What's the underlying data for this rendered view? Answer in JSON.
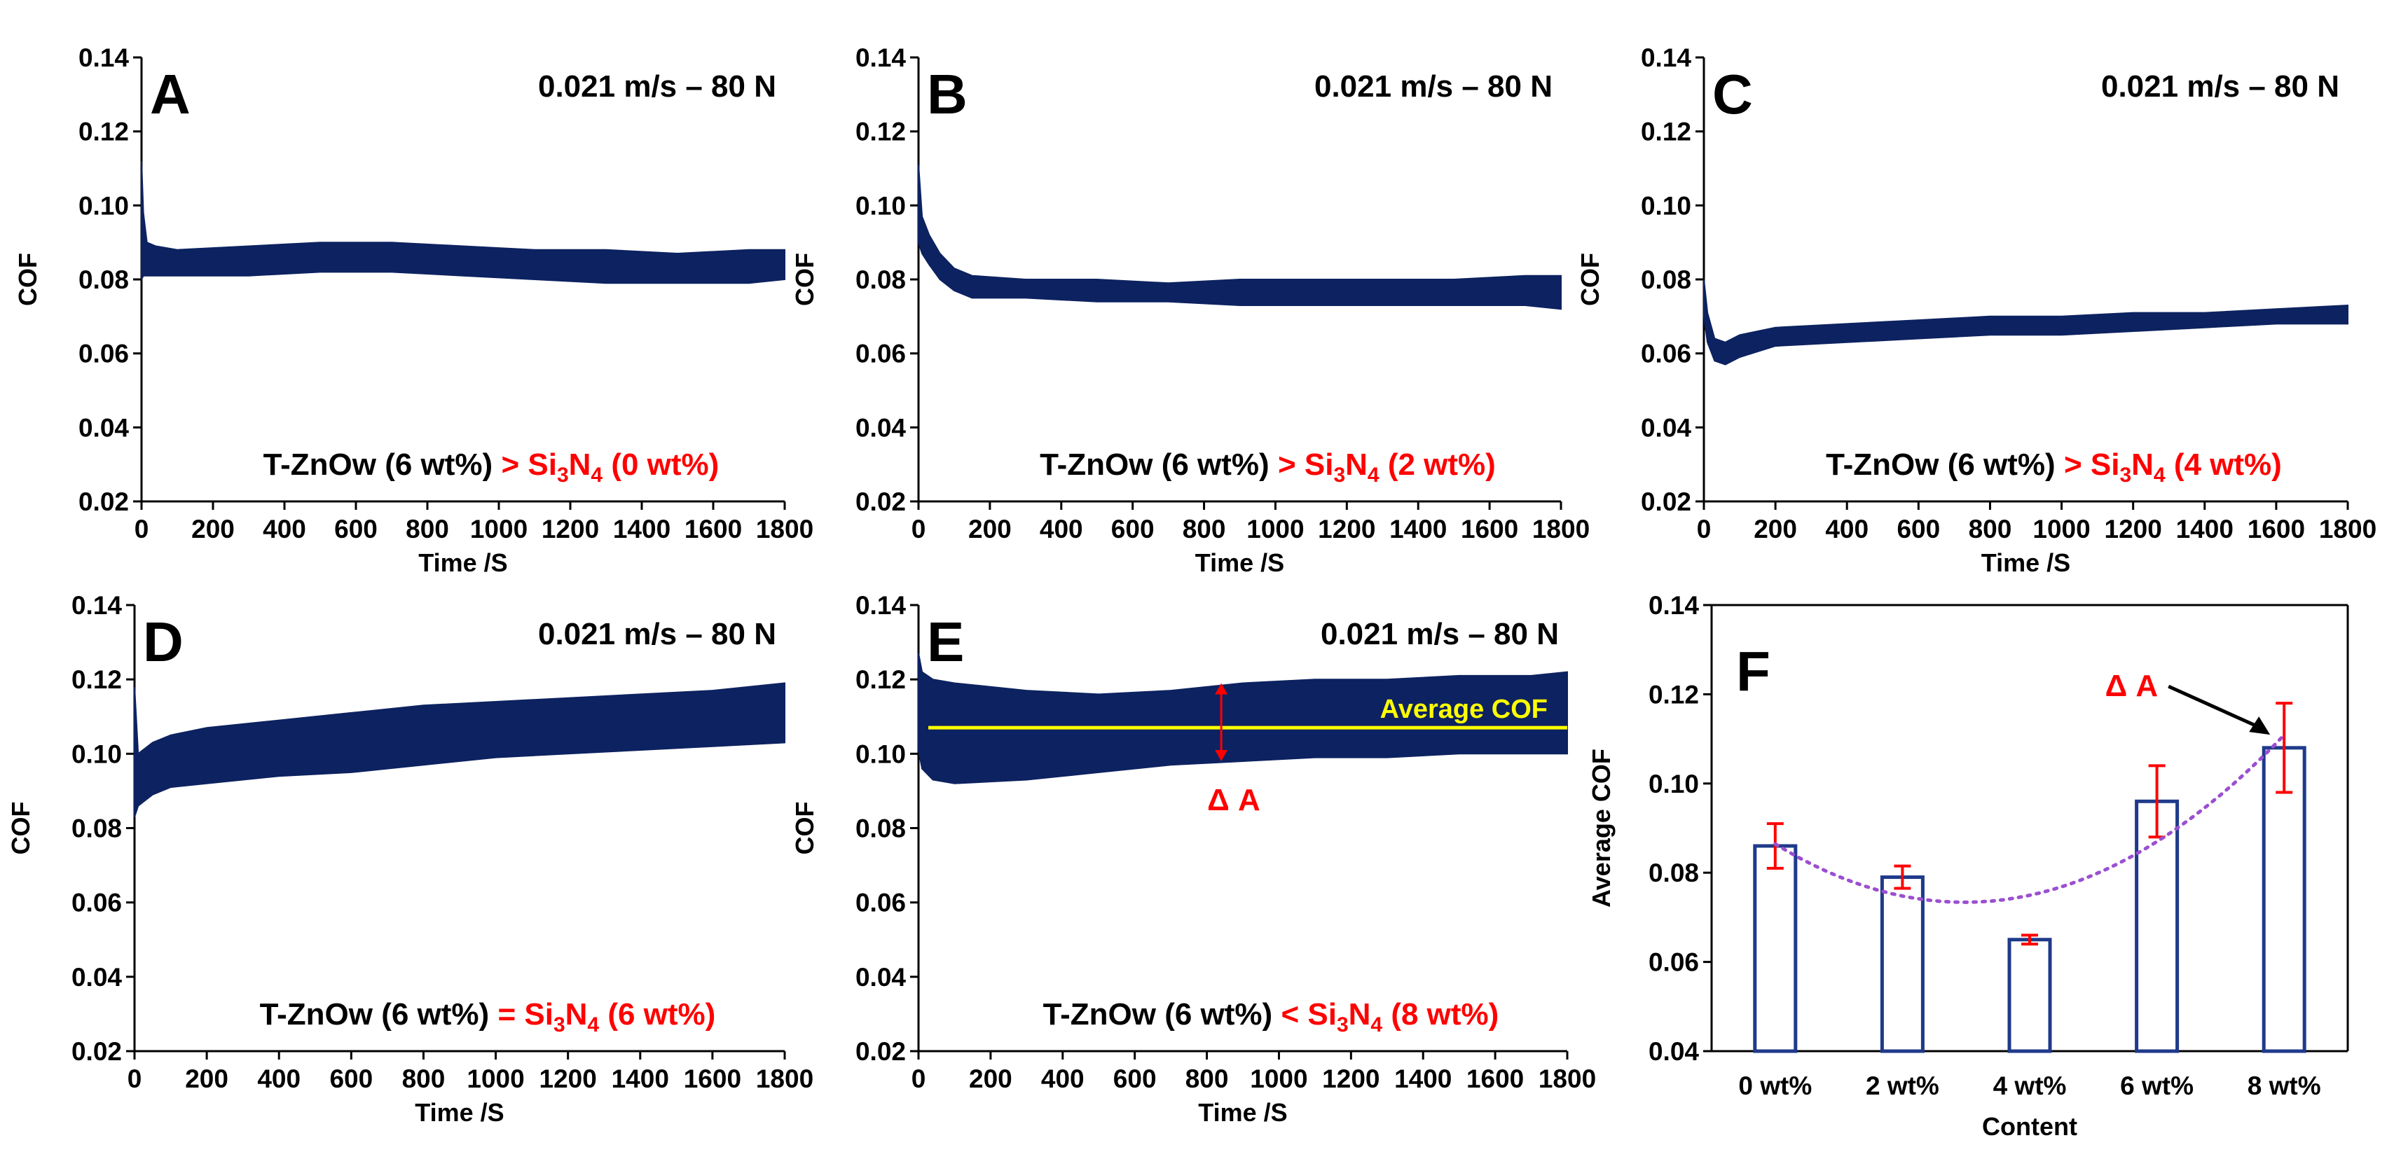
{
  "chart_data": [
    {
      "panel": "A",
      "type": "line",
      "condition": "0.021 m/s – 80 N",
      "xlabel": "Time /S",
      "ylabel": "COF",
      "xlim": [
        0,
        1800
      ],
      "ylim": [
        0.02,
        0.14
      ],
      "xticks": [
        "0",
        "200",
        "400",
        "600",
        "800",
        "1000",
        "1200",
        "1400",
        "1600",
        "1800"
      ],
      "yticks": [
        "0.02",
        "0.04",
        "0.06",
        "0.08",
        "0.10",
        "0.12",
        "0.14"
      ],
      "sample": {
        "base": "T-ZnOw (6 wt%)",
        "relation": ">",
        "filler": "Si",
        "sub1": "3",
        "mid": "N",
        "sub2": "4",
        "amount": "(0 wt%)"
      },
      "series": [
        {
          "color": "#0d2260",
          "band": [
            [
              0,
              0.08,
              0.112
            ],
            [
              5,
              0.081,
              0.098
            ],
            [
              15,
              0.081,
              0.09
            ],
            [
              40,
              0.081,
              0.089
            ],
            [
              100,
              0.081,
              0.088
            ],
            [
              300,
              0.081,
              0.089
            ],
            [
              500,
              0.082,
              0.09
            ],
            [
              700,
              0.082,
              0.09
            ],
            [
              900,
              0.081,
              0.089
            ],
            [
              1100,
              0.08,
              0.088
            ],
            [
              1300,
              0.079,
              0.088
            ],
            [
              1500,
              0.079,
              0.087
            ],
            [
              1700,
              0.079,
              0.088
            ],
            [
              1800,
              0.08,
              0.088
            ]
          ]
        }
      ]
    },
    {
      "panel": "B",
      "type": "line",
      "condition": "0.021 m/s – 80 N",
      "xlabel": "Time /S",
      "ylabel": "COF",
      "xlim": [
        0,
        1800
      ],
      "ylim": [
        0.02,
        0.14
      ],
      "xticks": [
        "0",
        "200",
        "400",
        "600",
        "800",
        "1000",
        "1200",
        "1400",
        "1600",
        "1800"
      ],
      "yticks": [
        "0.02",
        "0.04",
        "0.06",
        "0.08",
        "0.10",
        "0.12",
        "0.14"
      ],
      "sample": {
        "base": "T-ZnOw (6 wt%)",
        "relation": ">",
        "filler": "Si",
        "sub1": "3",
        "mid": "N",
        "sub2": "4",
        "amount": "(2 wt%)"
      },
      "series": [
        {
          "color": "#0d2260",
          "band": [
            [
              0,
              0.09,
              0.111
            ],
            [
              10,
              0.087,
              0.097
            ],
            [
              30,
              0.084,
              0.092
            ],
            [
              60,
              0.08,
              0.087
            ],
            [
              100,
              0.077,
              0.083
            ],
            [
              150,
              0.075,
              0.081
            ],
            [
              300,
              0.075,
              0.08
            ],
            [
              500,
              0.074,
              0.08
            ],
            [
              700,
              0.074,
              0.079
            ],
            [
              900,
              0.073,
              0.08
            ],
            [
              1100,
              0.073,
              0.08
            ],
            [
              1300,
              0.073,
              0.08
            ],
            [
              1500,
              0.073,
              0.08
            ],
            [
              1700,
              0.073,
              0.081
            ],
            [
              1800,
              0.072,
              0.081
            ]
          ]
        }
      ]
    },
    {
      "panel": "C",
      "type": "line",
      "condition": "0.021 m/s – 80 N",
      "xlabel": "Time /S",
      "ylabel": "COF",
      "xlim": [
        0,
        1800
      ],
      "ylim": [
        0.02,
        0.14
      ],
      "xticks": [
        "0",
        "200",
        "400",
        "600",
        "800",
        "1000",
        "1200",
        "1400",
        "1600",
        "1800"
      ],
      "yticks": [
        "0.02",
        "0.04",
        "0.06",
        "0.08",
        "0.10",
        "0.12",
        "0.14"
      ],
      "sample": {
        "base": "T-ZnOw (6 wt%)",
        "relation": ">",
        "filler": "Si",
        "sub1": "3",
        "mid": "N",
        "sub2": "4",
        "amount": "(4 wt%)"
      },
      "series": [
        {
          "color": "#0d2260",
          "band": [
            [
              0,
              0.07,
              0.08
            ],
            [
              10,
              0.063,
              0.071
            ],
            [
              30,
              0.058,
              0.064
            ],
            [
              60,
              0.057,
              0.063
            ],
            [
              100,
              0.059,
              0.065
            ],
            [
              200,
              0.062,
              0.067
            ],
            [
              400,
              0.063,
              0.068
            ],
            [
              600,
              0.064,
              0.069
            ],
            [
              800,
              0.065,
              0.07
            ],
            [
              1000,
              0.065,
              0.07
            ],
            [
              1200,
              0.066,
              0.071
            ],
            [
              1400,
              0.067,
              0.071
            ],
            [
              1600,
              0.068,
              0.072
            ],
            [
              1800,
              0.068,
              0.073
            ]
          ]
        }
      ]
    },
    {
      "panel": "D",
      "type": "line",
      "condition": "0.021 m/s – 80 N",
      "xlabel": "Time /S",
      "ylabel": "COF",
      "xlim": [
        0,
        1800
      ],
      "ylim": [
        0.02,
        0.14
      ],
      "xticks": [
        "0",
        "200",
        "400",
        "600",
        "800",
        "1000",
        "1200",
        "1400",
        "1600",
        "1800"
      ],
      "yticks": [
        "0.02",
        "0.04",
        "0.06",
        "0.08",
        "0.10",
        "0.12",
        "0.14"
      ],
      "sample": {
        "base": "T-ZnOw (6 wt%)",
        "relation": "=",
        "filler": "Si",
        "sub1": "3",
        "mid": "N",
        "sub2": "4",
        "amount": "(6 wt%)"
      },
      "series": [
        {
          "color": "#0d2260",
          "band": [
            [
              0,
              0.083,
              0.118
            ],
            [
              10,
              0.086,
              0.1
            ],
            [
              50,
              0.089,
              0.103
            ],
            [
              100,
              0.091,
              0.105
            ],
            [
              200,
              0.092,
              0.107
            ],
            [
              400,
              0.094,
              0.109
            ],
            [
              600,
              0.095,
              0.111
            ],
            [
              800,
              0.097,
              0.113
            ],
            [
              1000,
              0.099,
              0.114
            ],
            [
              1200,
              0.1,
              0.115
            ],
            [
              1400,
              0.101,
              0.116
            ],
            [
              1600,
              0.102,
              0.117
            ],
            [
              1800,
              0.103,
              0.119
            ]
          ]
        }
      ]
    },
    {
      "panel": "E",
      "type": "line",
      "condition": "0.021 m/s – 80 N",
      "xlabel": "Time /S",
      "ylabel": "COF",
      "xlim": [
        0,
        1800
      ],
      "ylim": [
        0.02,
        0.14
      ],
      "xticks": [
        "0",
        "200",
        "400",
        "600",
        "800",
        "1000",
        "1200",
        "1400",
        "1600",
        "1800"
      ],
      "yticks": [
        "0.02",
        "0.04",
        "0.06",
        "0.08",
        "0.10",
        "0.12",
        "0.14"
      ],
      "sample": {
        "base": "T-ZnOw (6 wt%)",
        "relation": "<",
        "filler": "Si",
        "sub1": "3",
        "mid": "N",
        "sub2": "4",
        "amount": "(8 wt%)"
      },
      "average_label": "Average COF",
      "average_value": 0.107,
      "delta_label": "Δ A",
      "delta_x": 840,
      "delta_range": [
        0.098,
        0.119
      ],
      "series": [
        {
          "color": "#0d2260",
          "band": [
            [
              0,
              0.101,
              0.127
            ],
            [
              10,
              0.096,
              0.122
            ],
            [
              40,
              0.093,
              0.12
            ],
            [
              100,
              0.092,
              0.119
            ],
            [
              300,
              0.093,
              0.117
            ],
            [
              500,
              0.095,
              0.116
            ],
            [
              700,
              0.097,
              0.117
            ],
            [
              900,
              0.098,
              0.119
            ],
            [
              1100,
              0.099,
              0.12
            ],
            [
              1300,
              0.099,
              0.12
            ],
            [
              1500,
              0.1,
              0.121
            ],
            [
              1700,
              0.1,
              0.121
            ],
            [
              1800,
              0.1,
              0.122
            ]
          ]
        }
      ]
    },
    {
      "panel": "F",
      "type": "bar",
      "xlabel": "Content",
      "ylabel": "Average COF",
      "ylim": [
        0.04,
        0.14
      ],
      "yticks": [
        "0.04",
        "0.06",
        "0.08",
        "0.10",
        "0.12",
        "0.14"
      ],
      "categories": [
        "0 wt%",
        "2 wt%",
        "4 wt%",
        "6 wt%",
        "8 wt%"
      ],
      "values": [
        0.086,
        0.079,
        0.065,
        0.096,
        0.108
      ],
      "errors": [
        0.005,
        0.0025,
        0.001,
        0.008,
        0.01
      ],
      "trendline": {
        "type": "polynomial",
        "color": "#9b4fd1"
      },
      "annotation": {
        "text": "Δ A",
        "target_category": "8 wt%"
      }
    }
  ]
}
